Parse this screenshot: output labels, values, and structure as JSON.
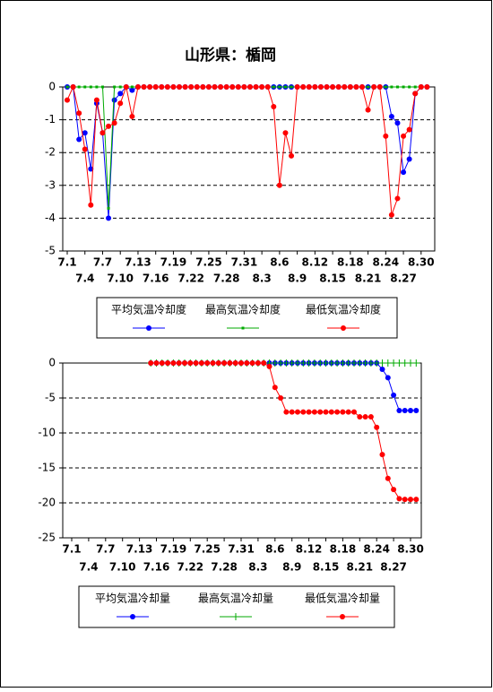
{
  "chart_data": [
    {
      "type": "line",
      "title": "山形県：楯岡",
      "categories": [
        "7.1",
        null,
        null,
        "7.4",
        null,
        null,
        "7.7",
        null,
        null,
        "7.10",
        null,
        null,
        "7.13",
        null,
        null,
        "7.16",
        null,
        null,
        "7.19",
        null,
        null,
        "7.22",
        null,
        null,
        "7.25",
        null,
        null,
        "7.28",
        null,
        null,
        "7.31",
        null,
        null,
        "8.3",
        null,
        null,
        "8.6",
        null,
        null,
        "8.9",
        null,
        null,
        "8.12",
        null,
        null,
        "8.15",
        null,
        null,
        "8.18",
        null,
        null,
        "8.21",
        null,
        null,
        "8.24",
        null,
        null,
        "8.27",
        null,
        null,
        "8.30",
        null
      ],
      "series": [
        {
          "name": "平均気温冷却度",
          "color": "#0000ff",
          "marker": "circle",
          "values": [
            0,
            0,
            -1.6,
            -1.4,
            -2.5,
            -0.5,
            -1.4,
            -4,
            -0.4,
            -0.2,
            0,
            -0.1,
            0,
            0,
            0,
            0,
            0,
            0,
            0,
            0,
            0,
            0,
            0,
            0,
            0,
            0,
            0,
            0,
            0,
            0,
            0,
            0,
            0,
            0,
            0,
            0,
            0,
            0,
            0,
            0,
            0,
            0,
            0,
            0,
            0,
            0,
            0,
            0,
            0,
            0,
            0,
            0,
            0,
            0,
            0,
            -0.9,
            -1.1,
            -2.6,
            -2.2,
            -0.2,
            0,
            0
          ]
        },
        {
          "name": "最高気温冷却度",
          "color": "#00aa00",
          "marker": "square",
          "values": [
            0,
            0,
            0,
            0,
            0,
            0,
            0,
            -3.7,
            0,
            0,
            0,
            0,
            0,
            0,
            0,
            0,
            0,
            0,
            0,
            0,
            0,
            0,
            0,
            0,
            0,
            0,
            0,
            0,
            0,
            0,
            0,
            0,
            0,
            0,
            0,
            0,
            0,
            0,
            0,
            0,
            0,
            0,
            0,
            0,
            0,
            0,
            0,
            0,
            0,
            0,
            0,
            0,
            0,
            0,
            0,
            0,
            0,
            0,
            0,
            0,
            0,
            0
          ]
        },
        {
          "name": "最低気温冷却度",
          "color": "#ff0000",
          "marker": "circle",
          "values": [
            -0.4,
            0,
            -0.8,
            -1.9,
            -3.6,
            -0.4,
            -1.4,
            -1.2,
            -1.1,
            -0.5,
            0,
            -0.9,
            0,
            0,
            0,
            0,
            0,
            0,
            0,
            0,
            0,
            0,
            0,
            0,
            0,
            0,
            0,
            0,
            0,
            0,
            0,
            0,
            0,
            0,
            0,
            -0.6,
            -3,
            -1.4,
            -2.1,
            0,
            0,
            0,
            0,
            0,
            0,
            0,
            0,
            0,
            0,
            0,
            0,
            -0.7,
            0,
            0,
            -1.5,
            -3.9,
            -3.4,
            -1.5,
            -1.3,
            -0.2,
            0,
            0
          ]
        }
      ],
      "ylim": [
        -5,
        0
      ],
      "yticks": [
        0,
        -1,
        -2,
        -3,
        -4,
        -5
      ],
      "grid": true
    },
    {
      "type": "line",
      "categories": [
        "7.1",
        null,
        null,
        "7.4",
        null,
        null,
        "7.7",
        null,
        null,
        "7.10",
        null,
        null,
        "7.13",
        null,
        null,
        "7.16",
        null,
        null,
        "7.19",
        null,
        null,
        "7.22",
        null,
        null,
        "7.25",
        null,
        null,
        "7.28",
        null,
        null,
        "7.31",
        null,
        null,
        "8.3",
        null,
        null,
        "8.6",
        null,
        null,
        "8.9",
        null,
        null,
        "8.12",
        null,
        null,
        "8.15",
        null,
        null,
        "8.18",
        null,
        null,
        "8.21",
        null,
        null,
        "8.24",
        null,
        null,
        "8.27",
        null,
        null,
        "8.30",
        null
      ],
      "series": [
        {
          "name": "平均気温冷却量",
          "color": "#0000ff",
          "marker": "circle",
          "values": [
            null,
            null,
            null,
            null,
            null,
            null,
            null,
            null,
            null,
            null,
            null,
            null,
            null,
            null,
            0,
            0,
            0,
            0,
            0,
            0,
            0,
            0,
            0,
            0,
            0,
            0,
            0,
            0,
            0,
            0,
            0,
            0,
            0,
            0,
            0,
            0,
            0,
            0,
            0,
            0,
            0,
            0,
            0,
            0,
            0,
            0,
            0,
            0,
            0,
            0,
            0,
            0,
            0,
            0,
            0,
            -0.9,
            -2.1,
            -4.6,
            -6.8,
            -6.8,
            -6.8,
            -6.8
          ]
        },
        {
          "name": "最高気温冷却量",
          "color": "#00aa00",
          "marker": "plus",
          "values": [
            null,
            null,
            null,
            null,
            null,
            null,
            null,
            null,
            null,
            null,
            null,
            null,
            null,
            null,
            0,
            0,
            0,
            0,
            0,
            0,
            0,
            0,
            0,
            0,
            0,
            0,
            0,
            0,
            0,
            0,
            0,
            0,
            0,
            0,
            0,
            0,
            0,
            0,
            0,
            0,
            0,
            0,
            0,
            0,
            0,
            0,
            0,
            0,
            0,
            0,
            0,
            0,
            0,
            0,
            0,
            0,
            0,
            0,
            0,
            0,
            0,
            0
          ]
        },
        {
          "name": "最低気温冷却量",
          "color": "#ff0000",
          "marker": "circle",
          "values": [
            null,
            null,
            null,
            null,
            null,
            null,
            null,
            null,
            null,
            null,
            null,
            null,
            null,
            null,
            0,
            0,
            0,
            0,
            0,
            0,
            0,
            0,
            0,
            0,
            0,
            0,
            0,
            0,
            0,
            0,
            0,
            0,
            0,
            0,
            0,
            -0.5,
            -3.5,
            -5,
            -7,
            -7,
            -7,
            -7,
            -7,
            -7,
            -7,
            -7,
            -7,
            -7,
            -7,
            -7,
            -7,
            -7.7,
            -7.7,
            -7.7,
            -9.2,
            -13.1,
            -16.5,
            -18.1,
            -19.4,
            -19.5,
            -19.5,
            -19.5
          ]
        }
      ],
      "ylim": [
        -25,
        0
      ],
      "yticks": [
        0,
        -5,
        -10,
        -15,
        -20,
        -25
      ],
      "grid": true
    }
  ]
}
